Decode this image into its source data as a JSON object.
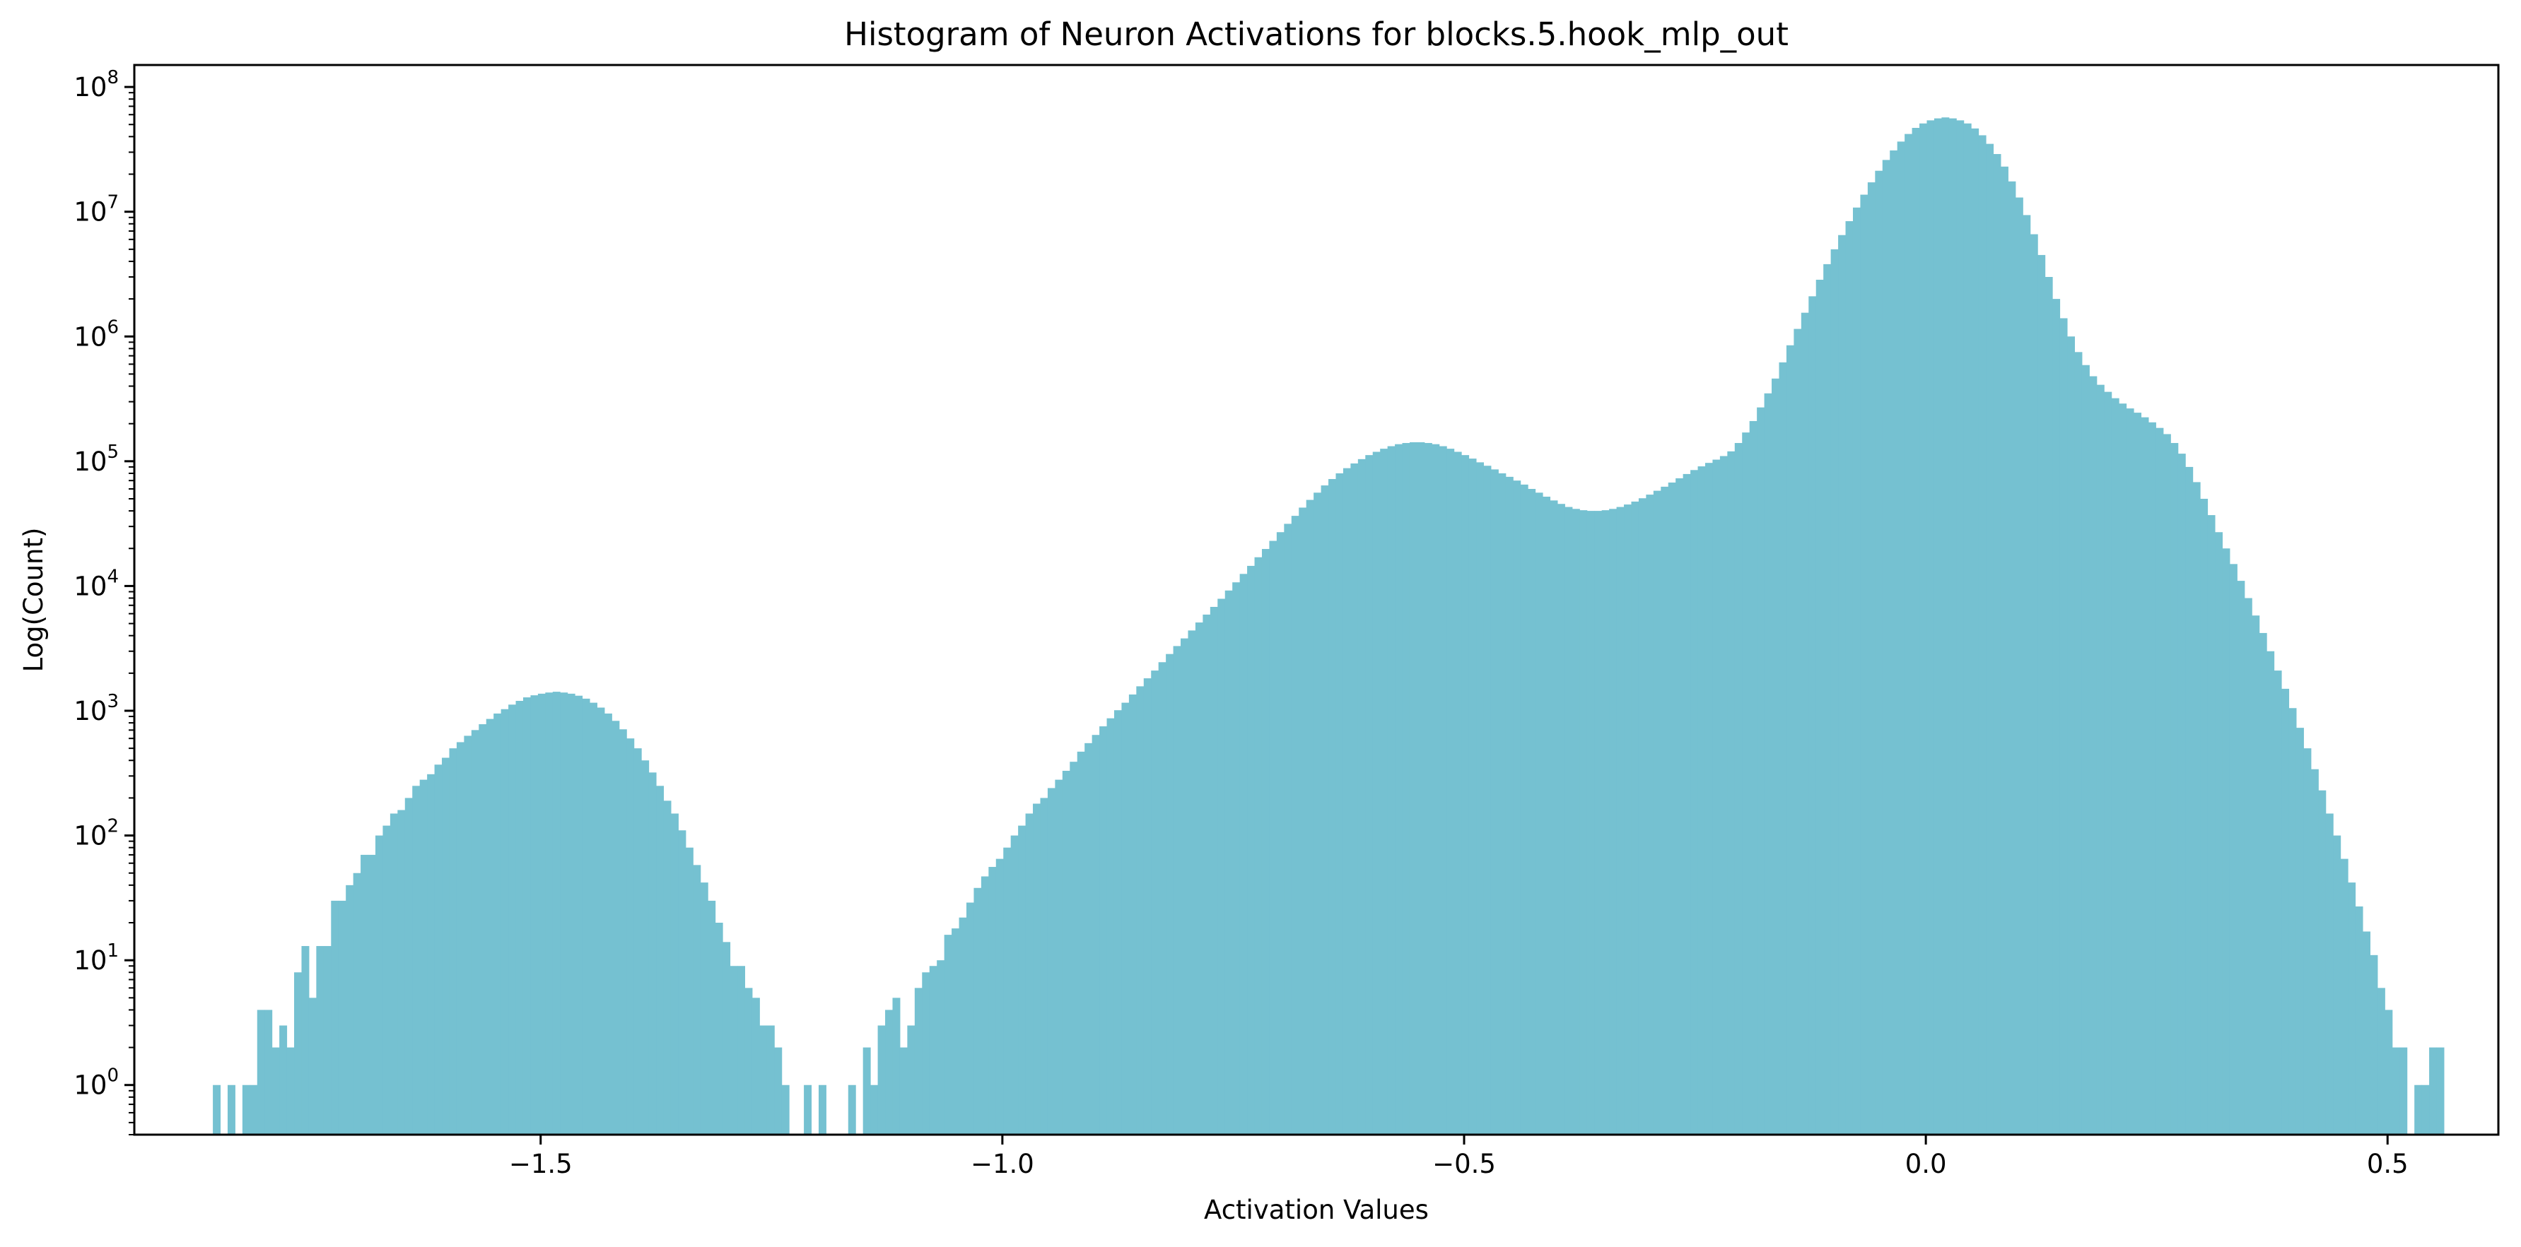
{
  "chart_data": {
    "type": "bar",
    "title": "Histogram of Neuron Activations for blocks.5.hook_mlp_out",
    "xlabel": "Activation Values",
    "ylabel": "Log(Count)",
    "yscale": "log",
    "xlim": [
      -1.94,
      0.62
    ],
    "ylim": [
      0.4,
      150000000
    ],
    "grid": false,
    "legend": "none",
    "bar_color": "#75c1d1",
    "x_ticks": [
      {
        "value": -1.5,
        "label": "−1.5"
      },
      {
        "value": -1.0,
        "label": "−1.0"
      },
      {
        "value": -0.5,
        "label": "−0.5"
      },
      {
        "value": 0.0,
        "label": "0.0"
      },
      {
        "value": 0.5,
        "label": "0.5"
      }
    ],
    "y_ticks": [
      {
        "value": 1,
        "base": "10",
        "exp": "0"
      },
      {
        "value": 10,
        "base": "10",
        "exp": "1"
      },
      {
        "value": 100,
        "base": "10",
        "exp": "2"
      },
      {
        "value": 1000,
        "base": "10",
        "exp": "3"
      },
      {
        "value": 10000,
        "base": "10",
        "exp": "4"
      },
      {
        "value": 100000,
        "base": "10",
        "exp": "5"
      },
      {
        "value": 1000000,
        "base": "10",
        "exp": "6"
      },
      {
        "value": 10000000,
        "base": "10",
        "exp": "7"
      },
      {
        "value": 100000000,
        "base": "10",
        "exp": "8"
      }
    ],
    "bin_width": 0.00793,
    "bins": [
      [
        -1.851,
        1
      ],
      [
        -1.835,
        1
      ],
      [
        -1.819,
        1
      ],
      [
        -1.811,
        1
      ],
      [
        -1.803,
        4
      ],
      [
        -1.795,
        4
      ],
      [
        -1.787,
        2
      ],
      [
        -1.779,
        3
      ],
      [
        -1.771,
        2
      ],
      [
        -1.763,
        8
      ],
      [
        -1.755,
        13
      ],
      [
        -1.747,
        5
      ],
      [
        -1.739,
        13
      ],
      [
        -1.731,
        13
      ],
      [
        -1.723,
        30
      ],
      [
        -1.715,
        30
      ],
      [
        -1.707,
        40
      ],
      [
        -1.699,
        50
      ],
      [
        -1.691,
        70
      ],
      [
        -1.683,
        70
      ],
      [
        -1.675,
        100
      ],
      [
        -1.667,
        120
      ],
      [
        -1.659,
        150
      ],
      [
        -1.651,
        160
      ],
      [
        -1.643,
        200
      ],
      [
        -1.635,
        250
      ],
      [
        -1.627,
        280
      ],
      [
        -1.619,
        310
      ],
      [
        -1.611,
        370
      ],
      [
        -1.603,
        420
      ],
      [
        -1.595,
        500
      ],
      [
        -1.587,
        560
      ],
      [
        -1.579,
        630
      ],
      [
        -1.571,
        700
      ],
      [
        -1.563,
        780
      ],
      [
        -1.555,
        860
      ],
      [
        -1.547,
        950
      ],
      [
        -1.539,
        1030
      ],
      [
        -1.531,
        1120
      ],
      [
        -1.523,
        1200
      ],
      [
        -1.515,
        1280
      ],
      [
        -1.507,
        1330
      ],
      [
        -1.499,
        1370
      ],
      [
        -1.491,
        1400
      ],
      [
        -1.483,
        1420
      ],
      [
        -1.475,
        1400
      ],
      [
        -1.467,
        1370
      ],
      [
        -1.459,
        1320
      ],
      [
        -1.451,
        1250
      ],
      [
        -1.443,
        1160
      ],
      [
        -1.435,
        1060
      ],
      [
        -1.427,
        950
      ],
      [
        -1.419,
        830
      ],
      [
        -1.411,
        710
      ],
      [
        -1.403,
        600
      ],
      [
        -1.395,
        500
      ],
      [
        -1.387,
        400
      ],
      [
        -1.379,
        320
      ],
      [
        -1.371,
        250
      ],
      [
        -1.363,
        190
      ],
      [
        -1.355,
        150
      ],
      [
        -1.347,
        110
      ],
      [
        -1.339,
        80
      ],
      [
        -1.331,
        58
      ],
      [
        -1.323,
        42
      ],
      [
        -1.315,
        30
      ],
      [
        -1.307,
        20
      ],
      [
        -1.299,
        14
      ],
      [
        -1.291,
        9
      ],
      [
        -1.283,
        9
      ],
      [
        -1.275,
        6
      ],
      [
        -1.267,
        5
      ],
      [
        -1.259,
        3
      ],
      [
        -1.251,
        3
      ],
      [
        -1.243,
        2
      ],
      [
        -1.235,
        1
      ],
      [
        -1.211,
        1
      ],
      [
        -1.195,
        1
      ],
      [
        -1.163,
        1
      ],
      [
        -1.147,
        2
      ],
      [
        -1.139,
        1
      ],
      [
        -1.131,
        3
      ],
      [
        -1.123,
        4
      ],
      [
        -1.115,
        5
      ],
      [
        -1.107,
        2
      ],
      [
        -1.099,
        3
      ],
      [
        -1.091,
        6
      ],
      [
        -1.083,
        8
      ],
      [
        -1.075,
        9
      ],
      [
        -1.067,
        10
      ],
      [
        -1.059,
        16
      ],
      [
        -1.051,
        18
      ],
      [
        -1.043,
        22
      ],
      [
        -1.035,
        29
      ],
      [
        -1.027,
        38
      ],
      [
        -1.019,
        47
      ],
      [
        -1.011,
        56
      ],
      [
        -1.003,
        65
      ],
      [
        -0.995,
        80
      ],
      [
        -0.987,
        100
      ],
      [
        -0.979,
        120
      ],
      [
        -0.971,
        150
      ],
      [
        -0.963,
        180
      ],
      [
        -0.955,
        200
      ],
      [
        -0.947,
        240
      ],
      [
        -0.939,
        280
      ],
      [
        -0.931,
        330
      ],
      [
        -0.923,
        390
      ],
      [
        -0.915,
        470
      ],
      [
        -0.907,
        550
      ],
      [
        -0.899,
        640
      ],
      [
        -0.891,
        750
      ],
      [
        -0.883,
        870
      ],
      [
        -0.875,
        1010
      ],
      [
        -0.867,
        1160
      ],
      [
        -0.859,
        1350
      ],
      [
        -0.851,
        1570
      ],
      [
        -0.843,
        1820
      ],
      [
        -0.835,
        2100
      ],
      [
        -0.827,
        2450
      ],
      [
        -0.819,
        2850
      ],
      [
        -0.811,
        3300
      ],
      [
        -0.803,
        3800
      ],
      [
        -0.795,
        4400
      ],
      [
        -0.787,
        5100
      ],
      [
        -0.779,
        5900
      ],
      [
        -0.771,
        6800
      ],
      [
        -0.763,
        7900
      ],
      [
        -0.755,
        9200
      ],
      [
        -0.747,
        10700
      ],
      [
        -0.739,
        12500
      ],
      [
        -0.731,
        14500
      ],
      [
        -0.723,
        17000
      ],
      [
        -0.715,
        19800
      ],
      [
        -0.707,
        23000
      ],
      [
        -0.699,
        27000
      ],
      [
        -0.691,
        31500
      ],
      [
        -0.683,
        36500
      ],
      [
        -0.675,
        42500
      ],
      [
        -0.667,
        49000
      ],
      [
        -0.659,
        56000
      ],
      [
        -0.651,
        64000
      ],
      [
        -0.643,
        72000
      ],
      [
        -0.635,
        80000
      ],
      [
        -0.627,
        88000
      ],
      [
        -0.619,
        96000
      ],
      [
        -0.611,
        104000
      ],
      [
        -0.603,
        112000
      ],
      [
        -0.595,
        119000
      ],
      [
        -0.587,
        126000
      ],
      [
        -0.579,
        132000
      ],
      [
        -0.571,
        137000
      ],
      [
        -0.563,
        140000
      ],
      [
        -0.555,
        142000
      ],
      [
        -0.547,
        142000
      ],
      [
        -0.539,
        140000
      ],
      [
        -0.531,
        137000
      ],
      [
        -0.523,
        132000
      ],
      [
        -0.515,
        126000
      ],
      [
        -0.507,
        119000
      ],
      [
        -0.499,
        112000
      ],
      [
        -0.491,
        105000
      ],
      [
        -0.483,
        98000
      ],
      [
        -0.475,
        92000
      ],
      [
        -0.467,
        86000
      ],
      [
        -0.459,
        80000
      ],
      [
        -0.451,
        75000
      ],
      [
        -0.443,
        70000
      ],
      [
        -0.435,
        65000
      ],
      [
        -0.427,
        60000
      ],
      [
        -0.419,
        56000
      ],
      [
        -0.411,
        52000
      ],
      [
        -0.403,
        48500
      ],
      [
        -0.395,
        45500
      ],
      [
        -0.387,
        43000
      ],
      [
        -0.379,
        41500
      ],
      [
        -0.371,
        40500
      ],
      [
        -0.363,
        40000
      ],
      [
        -0.355,
        40000
      ],
      [
        -0.347,
        40500
      ],
      [
        -0.339,
        41500
      ],
      [
        -0.331,
        43000
      ],
      [
        -0.323,
        45000
      ],
      [
        -0.315,
        47500
      ],
      [
        -0.307,
        50500
      ],
      [
        -0.299,
        54000
      ],
      [
        -0.291,
        58000
      ],
      [
        -0.283,
        62500
      ],
      [
        -0.275,
        67500
      ],
      [
        -0.267,
        73000
      ],
      [
        -0.259,
        79000
      ],
      [
        -0.251,
        85000
      ],
      [
        -0.243,
        91000
      ],
      [
        -0.235,
        97000
      ],
      [
        -0.227,
        103000
      ],
      [
        -0.219,
        110000
      ],
      [
        -0.211,
        120000
      ],
      [
        -0.203,
        140000
      ],
      [
        -0.195,
        170000
      ],
      [
        -0.187,
        210000
      ],
      [
        -0.179,
        270000
      ],
      [
        -0.171,
        350000
      ],
      [
        -0.163,
        460000
      ],
      [
        -0.155,
        620000
      ],
      [
        -0.147,
        850000
      ],
      [
        -0.139,
        1150000
      ],
      [
        -0.131,
        1550000
      ],
      [
        -0.123,
        2100000
      ],
      [
        -0.115,
        2850000
      ],
      [
        -0.107,
        3800000
      ],
      [
        -0.099,
        5000000
      ],
      [
        -0.091,
        6500000
      ],
      [
        -0.083,
        8400000
      ],
      [
        -0.075,
        10800000
      ],
      [
        -0.067,
        13700000
      ],
      [
        -0.059,
        17200000
      ],
      [
        -0.051,
        21300000
      ],
      [
        -0.043,
        26000000
      ],
      [
        -0.035,
        31000000
      ],
      [
        -0.027,
        36500000
      ],
      [
        -0.019,
        42000000
      ],
      [
        -0.011,
        47000000
      ],
      [
        -0.003,
        51000000
      ],
      [
        0.005,
        54000000
      ],
      [
        0.013,
        56000000
      ],
      [
        0.021,
        57000000
      ],
      [
        0.029,
        56000000
      ],
      [
        0.037,
        54000000
      ],
      [
        0.045,
        51000000
      ],
      [
        0.053,
        46500000
      ],
      [
        0.061,
        41000000
      ],
      [
        0.069,
        35000000
      ],
      [
        0.077,
        29000000
      ],
      [
        0.085,
        23000000
      ],
      [
        0.093,
        17500000
      ],
      [
        0.101,
        13000000
      ],
      [
        0.109,
        9400000
      ],
      [
        0.117,
        6600000
      ],
      [
        0.125,
        4500000
      ],
      [
        0.133,
        3000000
      ],
      [
        0.141,
        2000000
      ],
      [
        0.149,
        1400000
      ],
      [
        0.157,
        1000000
      ],
      [
        0.165,
        750000
      ],
      [
        0.173,
        590000
      ],
      [
        0.181,
        480000
      ],
      [
        0.189,
        410000
      ],
      [
        0.197,
        360000
      ],
      [
        0.205,
        320000
      ],
      [
        0.213,
        290000
      ],
      [
        0.221,
        265000
      ],
      [
        0.229,
        245000
      ],
      [
        0.237,
        225000
      ],
      [
        0.245,
        205000
      ],
      [
        0.253,
        185000
      ],
      [
        0.261,
        165000
      ],
      [
        0.269,
        140000
      ],
      [
        0.277,
        115000
      ],
      [
        0.285,
        90000
      ],
      [
        0.293,
        68000
      ],
      [
        0.301,
        50000
      ],
      [
        0.309,
        37000
      ],
      [
        0.317,
        27000
      ],
      [
        0.325,
        20000
      ],
      [
        0.333,
        15000
      ],
      [
        0.341,
        11000
      ],
      [
        0.349,
        8000
      ],
      [
        0.357,
        5800
      ],
      [
        0.365,
        4200
      ],
      [
        0.373,
        3000
      ],
      [
        0.381,
        2100
      ],
      [
        0.389,
        1500
      ],
      [
        0.397,
        1050
      ],
      [
        0.405,
        730
      ],
      [
        0.413,
        500
      ],
      [
        0.421,
        340
      ],
      [
        0.429,
        230
      ],
      [
        0.437,
        150
      ],
      [
        0.445,
        100
      ],
      [
        0.453,
        65
      ],
      [
        0.461,
        42
      ],
      [
        0.469,
        27
      ],
      [
        0.477,
        17
      ],
      [
        0.485,
        11
      ],
      [
        0.493,
        6
      ],
      [
        0.501,
        4
      ],
      [
        0.509,
        2
      ],
      [
        0.517,
        2
      ],
      [
        0.533,
        1
      ],
      [
        0.541,
        1
      ],
      [
        0.549,
        2
      ],
      [
        0.557,
        2
      ]
    ]
  }
}
